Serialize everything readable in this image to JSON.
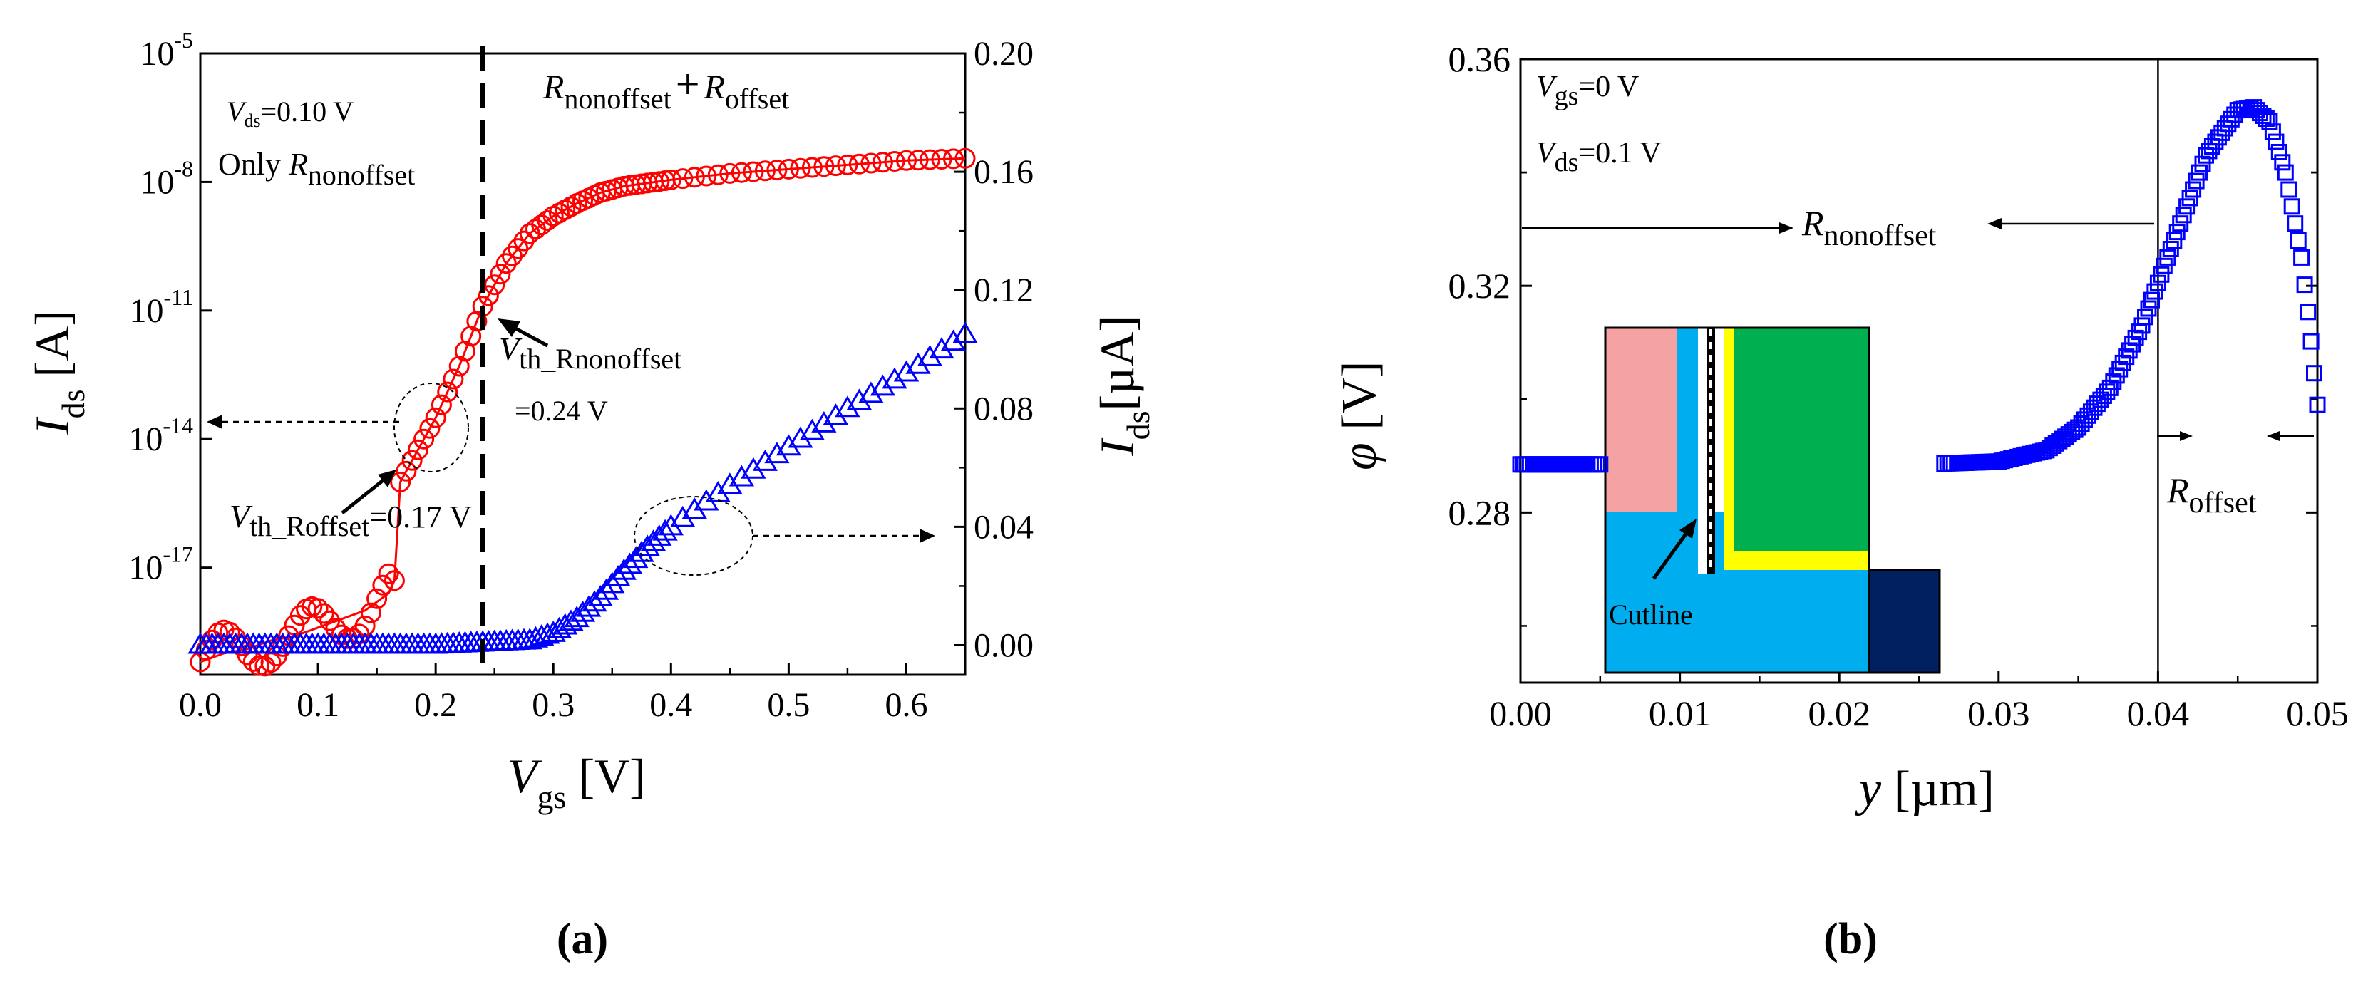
{
  "chart_data": [
    {
      "panel": "(a)",
      "type": "line",
      "xlabel": {
        "main": "V",
        "sub": "gs",
        "unit": " [V]"
      },
      "ylabel_left": {
        "main": "I",
        "sub": "ds",
        "unit": " [A]"
      },
      "ylabel_right": {
        "main": "I",
        "sub": "ds",
        "unit": "[µA]"
      },
      "xlim": [
        0.0,
        0.65
      ],
      "ylim_left_log10": [
        -19.5,
        -5
      ],
      "ylim_right": [
        -0.01,
        0.2
      ],
      "x_ticks": [
        "0.0",
        "0.1",
        "0.2",
        "0.3",
        "0.4",
        "0.5",
        "0.6"
      ],
      "y_left_ticks": [
        {
          "base": "10",
          "exp": "-5"
        },
        {
          "base": "10",
          "exp": "-8"
        },
        {
          "base": "10",
          "exp": "-11"
        },
        {
          "base": "10",
          "exp": "-14"
        },
        {
          "base": "10",
          "exp": "-17"
        }
      ],
      "y_right_ticks": [
        "0.20",
        "0.16",
        "0.12",
        "0.08",
        "0.04",
        "0.00"
      ],
      "divider_x": 0.24,
      "annotations": {
        "vds": {
          "main": "V",
          "sub": "ds",
          "rest": "=0.10 V"
        },
        "only": {
          "prefix": "Only ",
          "main": "R",
          "sub": "nonoffset"
        },
        "sum": {
          "r1": "R",
          "s1": "nonoffset",
          "plus": "+",
          "r2": "R",
          "s2": "offset"
        },
        "vth1": {
          "main": "V",
          "sub": "th_Rnonoffset",
          "val": "=0.24 V"
        },
        "vth2": {
          "main": "V",
          "sub": "th_Roffset",
          "val": "=0.17  V"
        }
      },
      "series": [
        {
          "axis": "left-log",
          "marker": "circle",
          "color": "#ff0000",
          "x": [
            0.0,
            0.02,
            0.04,
            0.06,
            0.08,
            0.1,
            0.12,
            0.14,
            0.16,
            0.165,
            0.17,
            0.18,
            0.2,
            0.22,
            0.24,
            0.26,
            0.28,
            0.3,
            0.32,
            0.34,
            0.36,
            0.4,
            0.45,
            0.5,
            0.55,
            0.6,
            0.65
          ],
          "log10_y": [
            -19.2,
            -19.0,
            -18.9,
            -18.7,
            -18.6,
            -18.4,
            -18.2,
            -18.0,
            -17.6,
            -17.3,
            -15.0,
            -14.5,
            -13.5,
            -12.3,
            -10.9,
            -9.9,
            -9.2,
            -8.8,
            -8.5,
            -8.25,
            -8.1,
            -7.95,
            -7.8,
            -7.7,
            -7.6,
            -7.5,
            -7.45
          ]
        },
        {
          "axis": "right",
          "marker": "triangle",
          "color": "#0000ff",
          "x": [
            0.0,
            0.1,
            0.2,
            0.28,
            0.3,
            0.32,
            0.34,
            0.36,
            0.38,
            0.4,
            0.45,
            0.5,
            0.55,
            0.6,
            0.65
          ],
          "y": [
            0.0,
            0.0,
            0.0,
            0.0015,
            0.004,
            0.009,
            0.016,
            0.025,
            0.033,
            0.04,
            0.054,
            0.067,
            0.08,
            0.092,
            0.105
          ]
        }
      ]
    },
    {
      "panel": "(b)",
      "type": "scatter",
      "xlabel": {
        "main": "y",
        "unit": " [µm]"
      },
      "ylabel": {
        "main": "φ",
        "unit": " [V]"
      },
      "xlim": [
        0.0,
        0.05
      ],
      "ylim": [
        0.25,
        0.36
      ],
      "x_ticks": [
        "0.00",
        "0.01",
        "0.02",
        "0.03",
        "0.04",
        "0.05"
      ],
      "y_ticks": [
        "0.36",
        "0.32",
        "0.28"
      ],
      "boundary_x": 0.04,
      "annotations": {
        "vgs": {
          "main": "V",
          "sub": "gs",
          "rest": "=0 V"
        },
        "vds": {
          "main": "V",
          "sub": "ds",
          "rest": "=0.1 V"
        },
        "rnon": {
          "main": "R",
          "sub": "nonoffset"
        },
        "roff": {
          "main": "R",
          "sub": "offset"
        },
        "cutline": "Cutline"
      },
      "inset_colors": {
        "pink": "#f4a3a2",
        "blue": "#00aeef",
        "navy": "#002060",
        "green": "#00b050",
        "yellow": "#ffff00"
      },
      "series": [
        {
          "marker": "square",
          "color": "#0000ff",
          "x": [
            0.0,
            0.005,
            0.01,
            0.015,
            0.02,
            0.025,
            0.03,
            0.033,
            0.035,
            0.037,
            0.039,
            0.041,
            0.043,
            0.045,
            0.046,
            0.047,
            0.048,
            0.049,
            0.0495,
            0.05
          ],
          "y": [
            0.2885,
            0.2885,
            0.2885,
            0.2885,
            0.2885,
            0.2885,
            0.289,
            0.291,
            0.295,
            0.302,
            0.313,
            0.328,
            0.343,
            0.351,
            0.3515,
            0.349,
            0.34,
            0.325,
            0.313,
            0.299
          ]
        }
      ]
    }
  ]
}
